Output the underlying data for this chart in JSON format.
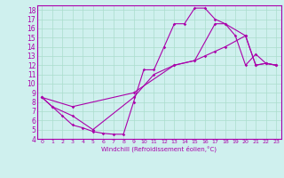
{
  "xlabel": "Windchill (Refroidissement éolien,°C)",
  "xlim": [
    -0.5,
    23.5
  ],
  "ylim": [
    4,
    18.5
  ],
  "xticks": [
    0,
    1,
    2,
    3,
    4,
    5,
    6,
    7,
    8,
    9,
    10,
    11,
    12,
    13,
    14,
    15,
    16,
    17,
    18,
    19,
    20,
    21,
    22,
    23
  ],
  "yticks": [
    4,
    5,
    6,
    7,
    8,
    9,
    10,
    11,
    12,
    13,
    14,
    15,
    16,
    17,
    18
  ],
  "bg_color": "#cff0ee",
  "grid_color": "#aaddcc",
  "line_color": "#aa00aa",
  "line1_x": [
    0,
    1,
    2,
    3,
    4,
    5,
    6,
    7,
    8,
    9,
    10,
    11,
    12,
    13,
    14,
    15,
    16,
    17,
    18,
    19,
    20,
    21,
    22,
    23
  ],
  "line1_y": [
    8.5,
    7.5,
    6.5,
    5.5,
    5.2,
    4.8,
    4.6,
    4.5,
    4.5,
    8.0,
    11.5,
    11.5,
    14.0,
    16.5,
    16.5,
    18.2,
    18.2,
    17.0,
    16.5,
    15.2,
    12.0,
    13.2,
    12.2,
    12.0
  ],
  "line2_x": [
    0,
    3,
    9,
    13,
    15,
    16,
    17,
    18,
    20,
    21,
    22,
    23
  ],
  "line2_y": [
    8.5,
    7.5,
    9.0,
    12.0,
    12.5,
    13.0,
    13.5,
    14.0,
    15.2,
    12.0,
    12.2,
    12.0
  ],
  "line3_x": [
    0,
    1,
    3,
    5,
    9,
    11,
    13,
    15,
    17,
    18,
    20,
    21,
    22,
    23
  ],
  "line3_y": [
    8.5,
    7.5,
    6.5,
    5.0,
    8.5,
    11.0,
    12.0,
    12.5,
    16.5,
    16.5,
    15.2,
    12.0,
    12.2,
    12.0
  ]
}
